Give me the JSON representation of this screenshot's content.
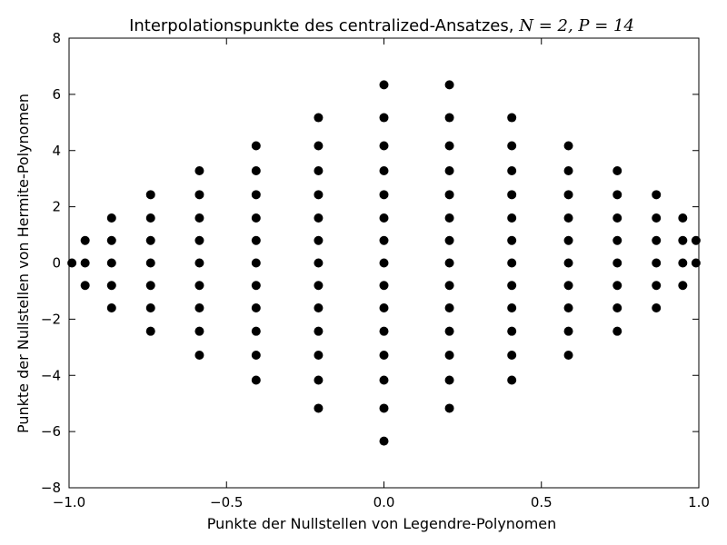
{
  "chart_data": {
    "type": "scatter",
    "title": "Interpolationspunkte des centralized-Ansatzes, ",
    "title_math": "N = 2, P = 14",
    "xlabel": "Punkte der Nullstellen von Legendre-Polynomen",
    "ylabel": "Punkte der Nullstellen von Hermite-Polynomen",
    "xlim": [
      -1.0,
      1.0
    ],
    "ylim": [
      -8,
      8
    ],
    "xticks": [
      {
        "value": -1.0,
        "label": "−1.0"
      },
      {
        "value": -0.5,
        "label": "−0.5"
      },
      {
        "value": 0.0,
        "label": "0.0"
      },
      {
        "value": 0.5,
        "label": "0.5"
      },
      {
        "value": 1.0,
        "label": "1.0"
      }
    ],
    "yticks": [
      {
        "value": -8,
        "label": "−8"
      },
      {
        "value": -6,
        "label": "−6"
      },
      {
        "value": -4,
        "label": "−4"
      },
      {
        "value": -2,
        "label": "−2"
      },
      {
        "value": 0,
        "label": "0"
      },
      {
        "value": 2,
        "label": "2"
      },
      {
        "value": 4,
        "label": "4"
      },
      {
        "value": 6,
        "label": "6"
      },
      {
        "value": 8,
        "label": "8"
      }
    ],
    "grid": false,
    "marker_color": "#000000",
    "columns": [
      {
        "x": -0.991,
        "y": [
          0
        ]
      },
      {
        "x": -0.949,
        "y": [
          -0.8,
          0,
          0.8
        ]
      },
      {
        "x": -0.865,
        "y": [
          -1.6,
          -0.8,
          0,
          0.8,
          1.6
        ]
      },
      {
        "x": -0.741,
        "y": [
          -2.43,
          -1.6,
          -0.8,
          0,
          0.8,
          1.6,
          2.43
        ]
      },
      {
        "x": -0.586,
        "y": [
          -3.28,
          -2.43,
          -1.6,
          -0.8,
          0,
          0.8,
          1.6,
          2.43,
          3.28
        ]
      },
      {
        "x": -0.406,
        "y": [
          -4.17,
          -3.28,
          -2.43,
          -1.6,
          -0.8,
          0,
          0.8,
          1.6,
          2.43,
          3.28,
          4.17
        ]
      },
      {
        "x": -0.208,
        "y": [
          -5.17,
          -4.17,
          -3.28,
          -2.43,
          -1.6,
          -0.8,
          0,
          0.8,
          1.6,
          2.43,
          3.28,
          4.17,
          5.17
        ]
      },
      {
        "x": 0.0,
        "y": [
          -6.34,
          -5.17,
          -4.17,
          -3.28,
          -2.43,
          -1.6,
          -0.8,
          0,
          0.8,
          1.6,
          2.43,
          3.28,
          4.17,
          5.17,
          6.34
        ]
      },
      {
        "x": 0.208,
        "y": [
          -5.17,
          -4.17,
          -3.28,
          -2.43,
          -1.6,
          -0.8,
          0,
          0.8,
          1.6,
          2.43,
          3.28,
          4.17,
          5.17,
          6.34
        ]
      },
      {
        "x": 0.406,
        "y": [
          -4.17,
          -3.28,
          -2.43,
          -1.6,
          -0.8,
          0,
          0.8,
          1.6,
          2.43,
          3.28,
          4.17,
          5.17
        ]
      },
      {
        "x": 0.586,
        "y": [
          -3.28,
          -2.43,
          -1.6,
          -0.8,
          0,
          0.8,
          1.6,
          2.43,
          3.28,
          4.17
        ]
      },
      {
        "x": 0.741,
        "y": [
          -2.43,
          -1.6,
          -0.8,
          0,
          0.8,
          1.6,
          2.43,
          3.28
        ]
      },
      {
        "x": 0.865,
        "y": [
          -1.6,
          -0.8,
          0,
          0.8,
          1.6,
          2.43
        ]
      },
      {
        "x": 0.949,
        "y": [
          -0.8,
          0,
          0.8,
          1.6
        ]
      },
      {
        "x": 0.991,
        "y": [
          0,
          0.8
        ]
      }
    ]
  }
}
